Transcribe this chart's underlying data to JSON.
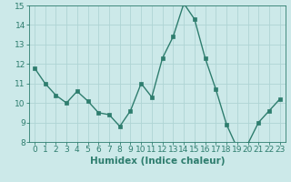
{
  "x": [
    0,
    1,
    2,
    3,
    4,
    5,
    6,
    7,
    8,
    9,
    10,
    11,
    12,
    13,
    14,
    15,
    16,
    17,
    18,
    19,
    20,
    21,
    22,
    23
  ],
  "y": [
    11.8,
    11.0,
    10.4,
    10.0,
    10.6,
    10.1,
    9.5,
    9.4,
    8.8,
    9.6,
    11.0,
    10.3,
    12.3,
    13.4,
    15.1,
    14.3,
    12.3,
    10.7,
    8.9,
    7.7,
    7.9,
    9.0,
    9.6,
    10.2
  ],
  "line_color": "#2e7d6e",
  "bg_color": "#cce9e9",
  "grid_color": "#afd4d4",
  "axis_color": "#2e7d6e",
  "xlabel": "Humidex (Indice chaleur)",
  "ylim_min": 8,
  "ylim_max": 15,
  "xlim_min": -0.5,
  "xlim_max": 23.5,
  "yticks": [
    8,
    9,
    10,
    11,
    12,
    13,
    14,
    15
  ],
  "xticks": [
    0,
    1,
    2,
    3,
    4,
    5,
    6,
    7,
    8,
    9,
    10,
    11,
    12,
    13,
    14,
    15,
    16,
    17,
    18,
    19,
    20,
    21,
    22,
    23
  ],
  "marker_size": 2.5,
  "line_width": 1.0,
  "xlabel_fontsize": 7.5,
  "tick_fontsize": 6.5
}
